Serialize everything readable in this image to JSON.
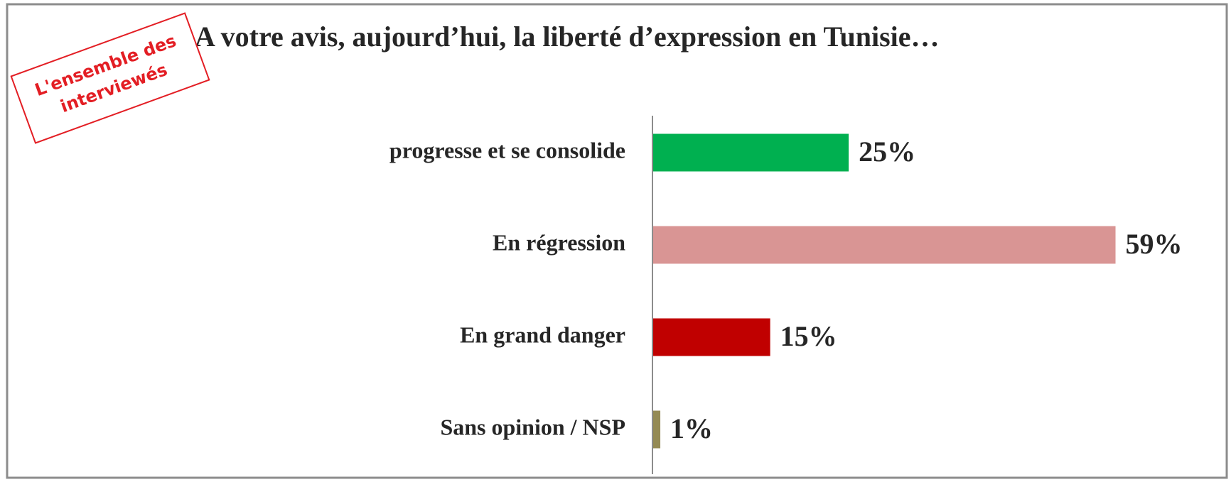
{
  "chart_data": {
    "type": "barh",
    "title": "A votre avis, aujourd’hui, la liberté d’expression en Tunisie…",
    "annotation": [
      "L'ensemble des",
      "interviewés"
    ],
    "categories": [
      "progresse et se consolide",
      "En régression",
      "En grand danger",
      "Sans opinion / NSP"
    ],
    "values": [
      25,
      59,
      15,
      1
    ],
    "value_labels": [
      "25%",
      "59%",
      "15%",
      "1%"
    ],
    "colors": [
      "#00b050",
      "#d99594",
      "#c00000",
      "#948a54"
    ],
    "xlim": [
      0,
      70
    ]
  }
}
